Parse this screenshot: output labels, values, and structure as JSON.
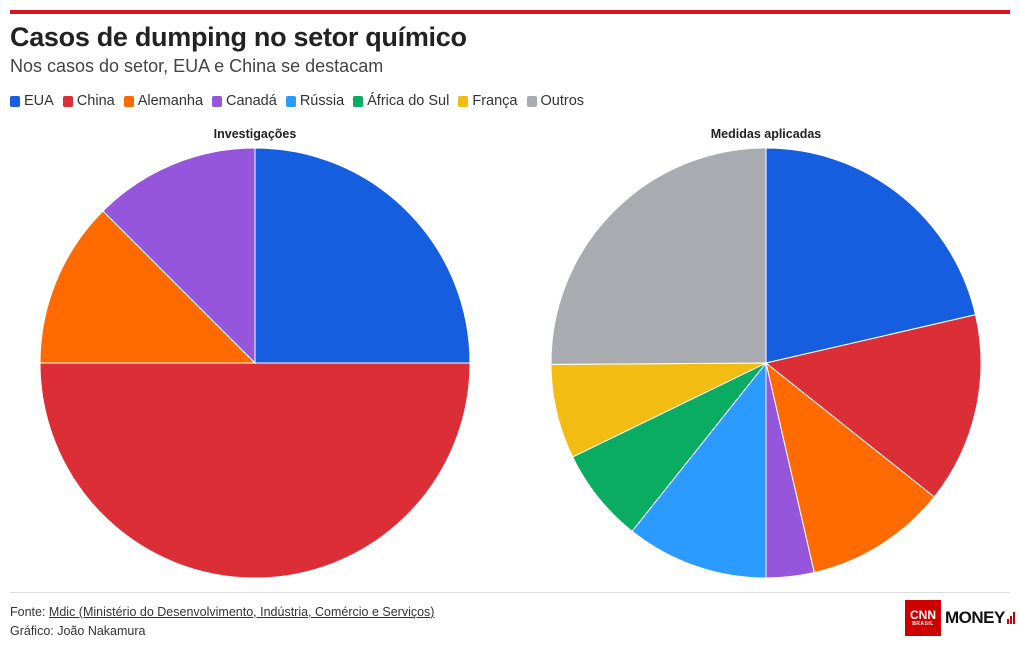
{
  "header": {
    "title": "Casos de dumping no setor químico",
    "subtitle": "Nos casos do setor, EUA e China se destacam"
  },
  "legend": [
    {
      "label": "EUA",
      "color": "#155ee0"
    },
    {
      "label": "China",
      "color": "#dc2e37"
    },
    {
      "label": "Alemanha",
      "color": "#ff6b00"
    },
    {
      "label": "Canadá",
      "color": "#9656dc"
    },
    {
      "label": "Rússia",
      "color": "#2b9bff"
    },
    {
      "label": "África do Sul",
      "color": "#0aac62"
    },
    {
      "label": "França",
      "color": "#f3bc13"
    },
    {
      "label": "Outros",
      "color": "#a8acb0"
    }
  ],
  "chart_data": [
    {
      "type": "pie",
      "title": "Investigações",
      "categories": [
        "EUA",
        "China",
        "Alemanha",
        "Canadá"
      ],
      "values": [
        25,
        50,
        12.5,
        12.5
      ]
    },
    {
      "type": "pie",
      "title": "Medidas aplicadas",
      "categories": [
        "EUA",
        "China",
        "Alemanha",
        "Canadá",
        "Rússia",
        "África do Sul",
        "França",
        "Outros"
      ],
      "values": [
        21.4,
        14.3,
        10.7,
        3.6,
        10.7,
        7.1,
        7.1,
        25.1
      ]
    }
  ],
  "footer": {
    "source_prefix": "Fonte: ",
    "source_link": "Mdic (Ministério do Desenvolvimento, Indústria, Comércio e Serviços)",
    "credit": "Gráfico: João Nakamura"
  },
  "logo": {
    "brand": "CNN",
    "brand_sub": "BRASIL",
    "product": "MONEY"
  }
}
